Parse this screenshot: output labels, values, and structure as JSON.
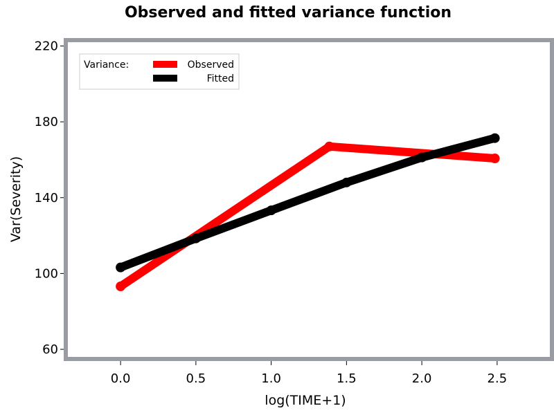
{
  "chart_data": {
    "type": "line",
    "title": "Observed and fitted variance function",
    "xlabel": "log(TIME+1)",
    "ylabel": "Var(Severity)",
    "xlim": [
      -0.35,
      2.85
    ],
    "ylim": [
      56,
      222
    ],
    "xticks": [
      "0.0",
      "0.5",
      "1.0",
      "1.5",
      "2.0",
      "2.5"
    ],
    "yticks": [
      "60",
      "100",
      "140",
      "180",
      "220"
    ],
    "legend": {
      "title": "Variance:",
      "placement": "top-left"
    },
    "series": [
      {
        "name": "Observed",
        "color": "#ff0000",
        "x": [
          0.0,
          1.386,
          2.485
        ],
        "y": [
          93.2,
          167.0,
          160.7
        ]
      },
      {
        "name": "Fitted",
        "color": "#000000",
        "x": [
          0.0,
          0.5,
          1.0,
          1.5,
          2.0,
          2.485
        ],
        "y": [
          103.2,
          118.5,
          133.3,
          148.0,
          161.2,
          171.4
        ]
      }
    ],
    "frame_color": "#999da3"
  }
}
